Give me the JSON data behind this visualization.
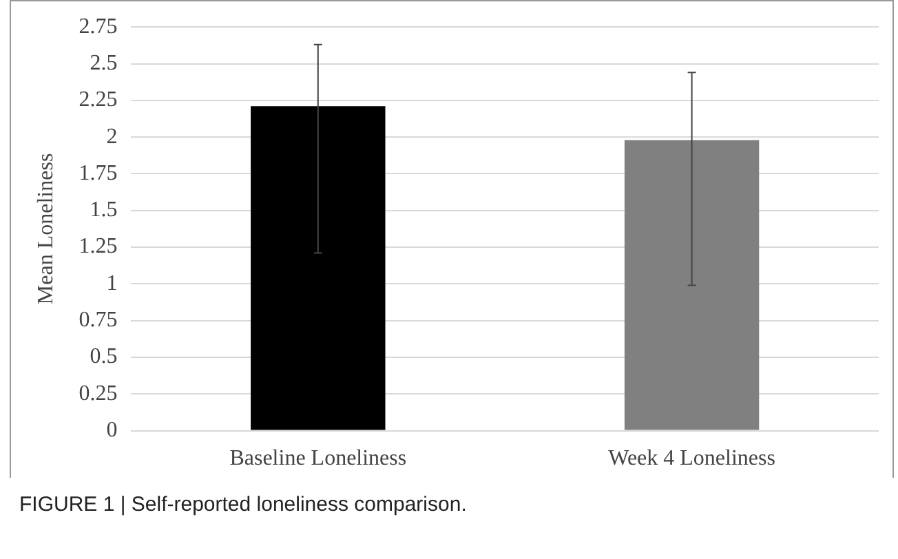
{
  "chart_data": {
    "type": "bar",
    "ylabel": "Mean Loneliness",
    "categories": [
      "Baseline Loneliness",
      "Week 4 Loneliness"
    ],
    "values": [
      2.21,
      1.98
    ],
    "colors": [
      "#000000",
      "#808080"
    ],
    "errors": [
      [
        1.21,
        2.63
      ],
      [
        0.99,
        2.44
      ]
    ],
    "ylim": [
      0,
      2.75
    ],
    "yticks": [
      0,
      0.25,
      0.5,
      0.75,
      1,
      1.25,
      1.5,
      1.75,
      2,
      2.25,
      2.5,
      2.75
    ],
    "grid": "y",
    "legend": false,
    "annotations": [
      "FIGURE 1 | Self-reported loneliness comparison."
    ]
  }
}
